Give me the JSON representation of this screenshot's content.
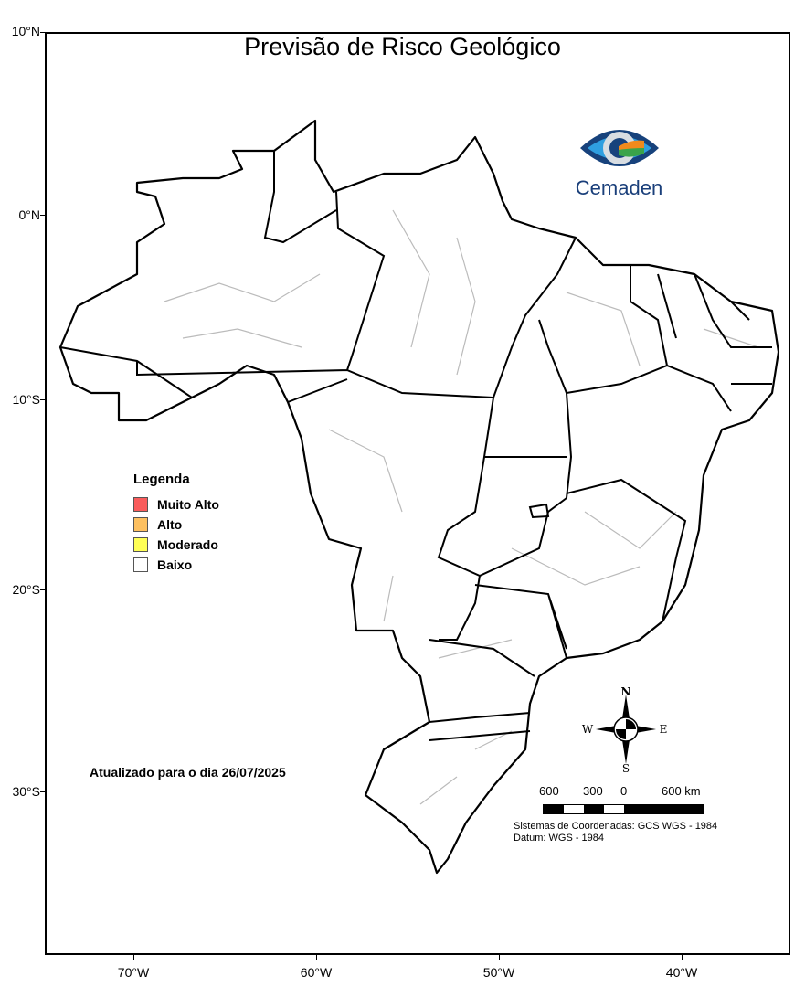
{
  "title": "Previsão de Risco Geológico",
  "axes": {
    "lat_labels": [
      "10°N",
      "0°N",
      "10°S",
      "20°S",
      "30°S"
    ],
    "lon_labels": [
      "70°W",
      "60°W",
      "50°W",
      "40°W"
    ]
  },
  "logo": {
    "text": "Cemaden"
  },
  "legend": {
    "title": "Legenda",
    "items": [
      {
        "label": "Muito Alto",
        "color": "#f95c5c"
      },
      {
        "label": "Alto",
        "color": "#fdc060"
      },
      {
        "label": "Moderado",
        "color": "#ffff55"
      },
      {
        "label": "Baixo",
        "color": "#ffffff"
      }
    ]
  },
  "updated": "Atualizado para o dia 26/07/2025",
  "compass": {
    "n": "N",
    "s": "S",
    "e": "E",
    "w": "W"
  },
  "scale": {
    "labels": [
      "600",
      "300",
      "0",
      "600 km"
    ]
  },
  "coordinates": {
    "system": "Sistemas de Coordenadas: GCS WGS - 1984",
    "datum": "Datum: WGS - 1984"
  }
}
